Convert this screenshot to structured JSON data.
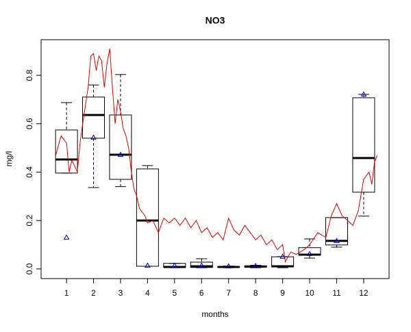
{
  "chart_data": {
    "type": "boxplot",
    "title": "NO3",
    "x_label": "months",
    "y_label": "mg/l",
    "categories": [
      "1",
      "2",
      "3",
      "4",
      "5",
      "6",
      "7",
      "8",
      "9",
      "10",
      "11",
      "12"
    ],
    "boxes": [
      {
        "whislo": 0.396,
        "q1": 0.396,
        "med": 0.452,
        "q3": 0.574,
        "whishi": 0.687
      },
      {
        "whislo": 0.336,
        "q1": 0.54,
        "med": 0.636,
        "q3": 0.71,
        "whishi": 0.76
      },
      {
        "whislo": 0.34,
        "q1": 0.37,
        "med": 0.472,
        "q3": 0.636,
        "whishi": 0.803
      },
      {
        "whislo": 0.011,
        "q1": 0.011,
        "med": 0.2,
        "q3": 0.413,
        "whishi": 0.427
      },
      {
        "whislo": 0.005,
        "q1": 0.006,
        "med": 0.008,
        "q3": 0.023,
        "whishi": 0.023
      },
      {
        "whislo": 0.005,
        "q1": 0.006,
        "med": 0.011,
        "q3": 0.028,
        "whishi": 0.042
      },
      {
        "whislo": 0.005,
        "q1": 0.007,
        "med": 0.008,
        "q3": 0.01,
        "whishi": 0.012
      },
      {
        "whislo": 0.005,
        "q1": 0.007,
        "med": 0.01,
        "q3": 0.013,
        "whishi": 0.015
      },
      {
        "whislo": 0.005,
        "q1": 0.008,
        "med": 0.011,
        "q3": 0.05,
        "whishi": 0.051
      },
      {
        "whislo": 0.045,
        "q1": 0.057,
        "med": 0.059,
        "q3": 0.088,
        "whishi": 0.124
      },
      {
        "whislo": 0.09,
        "q1": 0.099,
        "med": 0.116,
        "q3": 0.212,
        "whishi": 0.212
      },
      {
        "whislo": 0.218,
        "q1": 0.317,
        "med": 0.458,
        "q3": 0.707,
        "whishi": 0.721
      }
    ],
    "box_color": "#000000",
    "points": {
      "color": "#0000cc",
      "values": [
        0.13,
        0.543,
        0.472,
        0.014,
        0.014,
        0.014,
        0.011,
        0.012,
        0.051,
        0.062,
        0.116,
        0.721
      ]
    },
    "line": {
      "color": "#e00000",
      "x": [
        0.6,
        0.8,
        1.0,
        1.1,
        1.2,
        1.4,
        1.5,
        1.6,
        1.8,
        1.9,
        2.0,
        2.1,
        2.2,
        2.3,
        2.4,
        2.5,
        2.6,
        2.7,
        2.8,
        2.9,
        3.0,
        3.1,
        3.2,
        3.3,
        3.4,
        3.5,
        3.6,
        3.7,
        3.9,
        4.0,
        4.2,
        4.4,
        4.6,
        4.8,
        5.0,
        5.2,
        5.4,
        5.6,
        5.8,
        6.0,
        6.2,
        6.4,
        6.6,
        6.8,
        7.0,
        7.2,
        7.4,
        7.6,
        7.8,
        8.0,
        8.2,
        8.4,
        8.6,
        8.8,
        9.0,
        9.1,
        9.3,
        9.5,
        9.8,
        10.0,
        10.3,
        10.6,
        10.8,
        11.0,
        11.2,
        11.4,
        11.6,
        11.8,
        12.0,
        12.2,
        12.3,
        12.4,
        12.5
      ],
      "values": [
        0.47,
        0.55,
        0.52,
        0.4,
        0.45,
        0.4,
        0.52,
        0.6,
        0.75,
        0.88,
        0.89,
        0.82,
        0.88,
        0.86,
        0.75,
        0.85,
        0.91,
        0.75,
        0.6,
        0.7,
        0.65,
        0.58,
        0.55,
        0.5,
        0.4,
        0.33,
        0.3,
        0.25,
        0.22,
        0.19,
        0.2,
        0.15,
        0.21,
        0.19,
        0.21,
        0.18,
        0.21,
        0.17,
        0.2,
        0.15,
        0.17,
        0.13,
        0.15,
        0.12,
        0.21,
        0.16,
        0.14,
        0.18,
        0.15,
        0.12,
        0.14,
        0.1,
        0.12,
        0.08,
        0.1,
        0.03,
        0.07,
        0.06,
        0.08,
        0.1,
        0.15,
        0.13,
        0.22,
        0.27,
        0.22,
        0.2,
        0.18,
        0.24,
        0.37,
        0.4,
        0.35,
        0.44,
        0.47
      ]
    },
    "xlim": [
      0.06,
      12.94
    ],
    "ylim": [
      -0.04,
      0.947
    ],
    "yticks": [
      {
        "value": 0,
        "label": "0.0"
      },
      0.2,
      0.4,
      0.6,
      0.8
    ]
  }
}
